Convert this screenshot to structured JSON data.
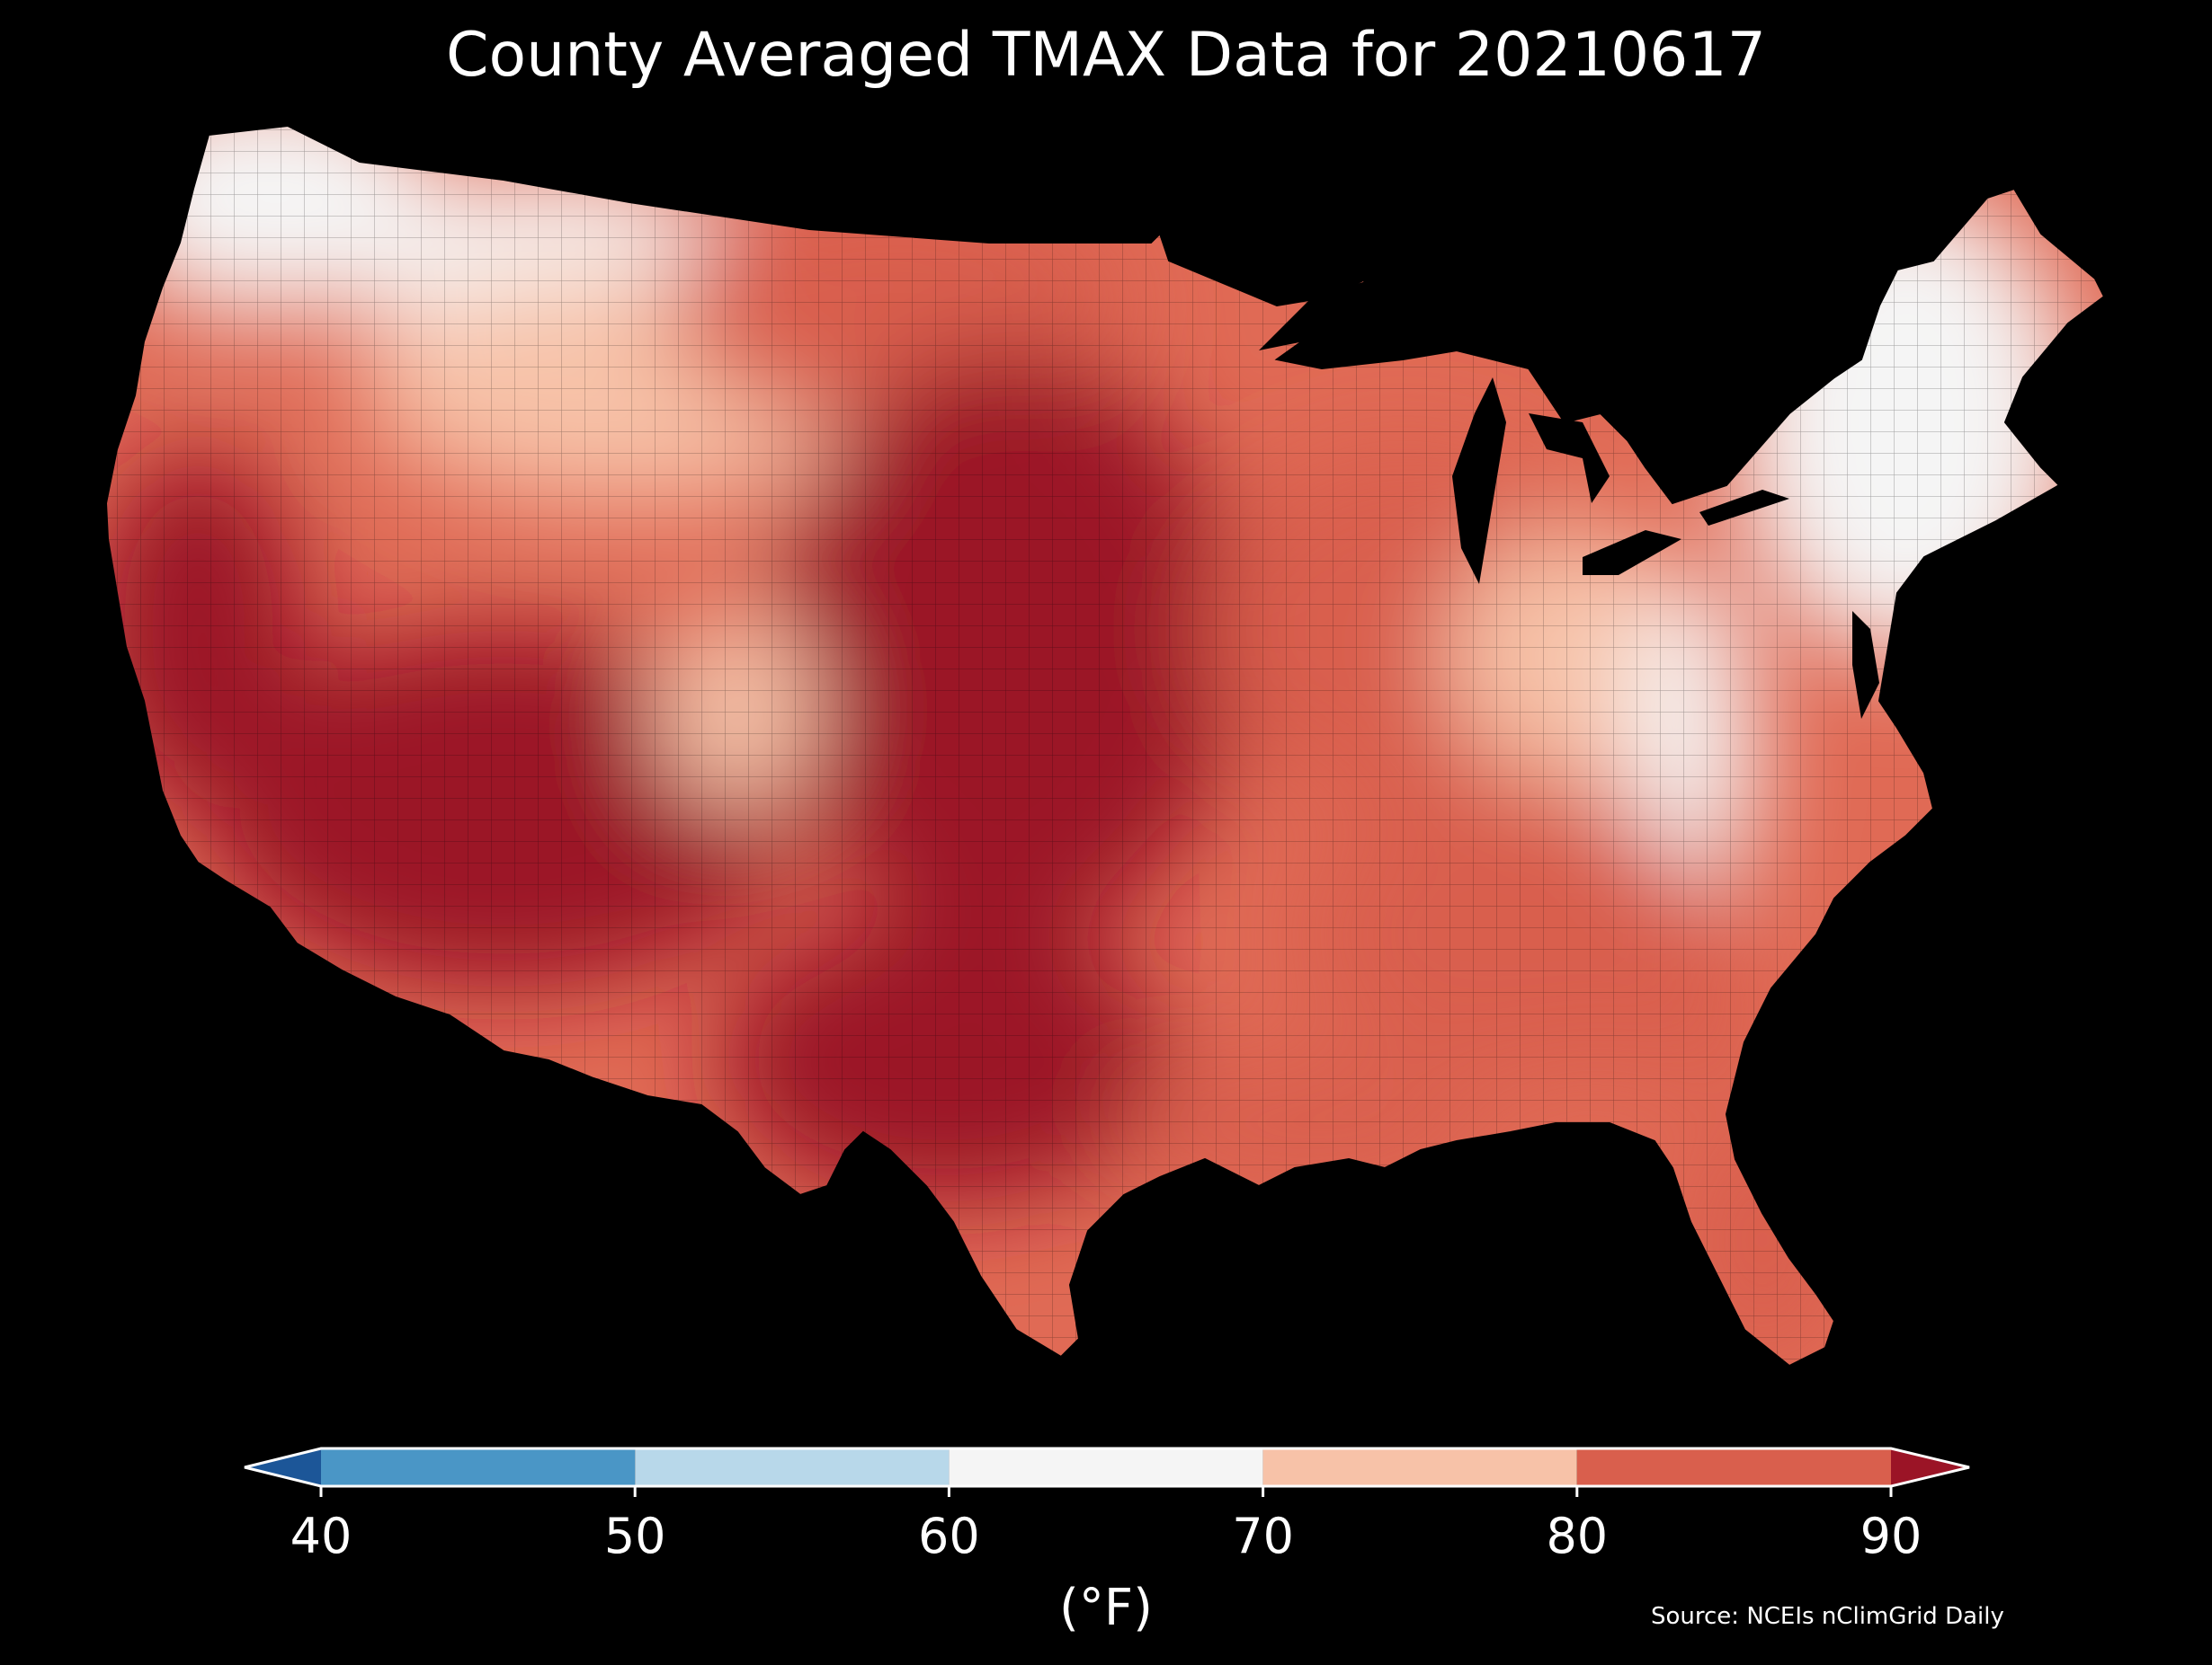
{
  "title": "County Averaged TMAX Data for 20210617",
  "map": {
    "region": "Contiguous United States",
    "unit_level": "county",
    "variable": "TMAX",
    "date": "20210617",
    "background_color": "#000000",
    "border_color": "#000000",
    "regional_values_f": {
      "pacific_northwest_coast": 62,
      "montana_idaho_highlands": 66,
      "northern_rockies": 72,
      "northern_plains": 80,
      "central_plains": 96,
      "great_basin_southwest": 102,
      "california_central_valley": 96,
      "colorado_rockies": 74,
      "texas": 92,
      "midwest": 80,
      "ohio_valley": 74,
      "appalachians": 66,
      "new_england": 63,
      "southeast": 82,
      "georgia_interior": 88,
      "florida": 82,
      "gulf_coast": 86
    }
  },
  "colorbar": {
    "label": "(°F)",
    "ticks": [
      "40",
      "50",
      "60",
      "70",
      "80",
      "90"
    ],
    "bins": [
      {
        "min": 40,
        "max": 50,
        "color": "#4a96c6"
      },
      {
        "min": 50,
        "max": 60,
        "color": "#b8d8ea"
      },
      {
        "min": 60,
        "max": 70,
        "color": "#f5f5f5"
      },
      {
        "min": 70,
        "max": 80,
        "color": "#f7c2a8"
      },
      {
        "min": 80,
        "max": 90,
        "color": "#d95f4d"
      }
    ],
    "under_color": "#1c5698",
    "over_color": "#9b1426",
    "extend": "both"
  },
  "source": "Source: NCEIs nClimGrid Daily"
}
